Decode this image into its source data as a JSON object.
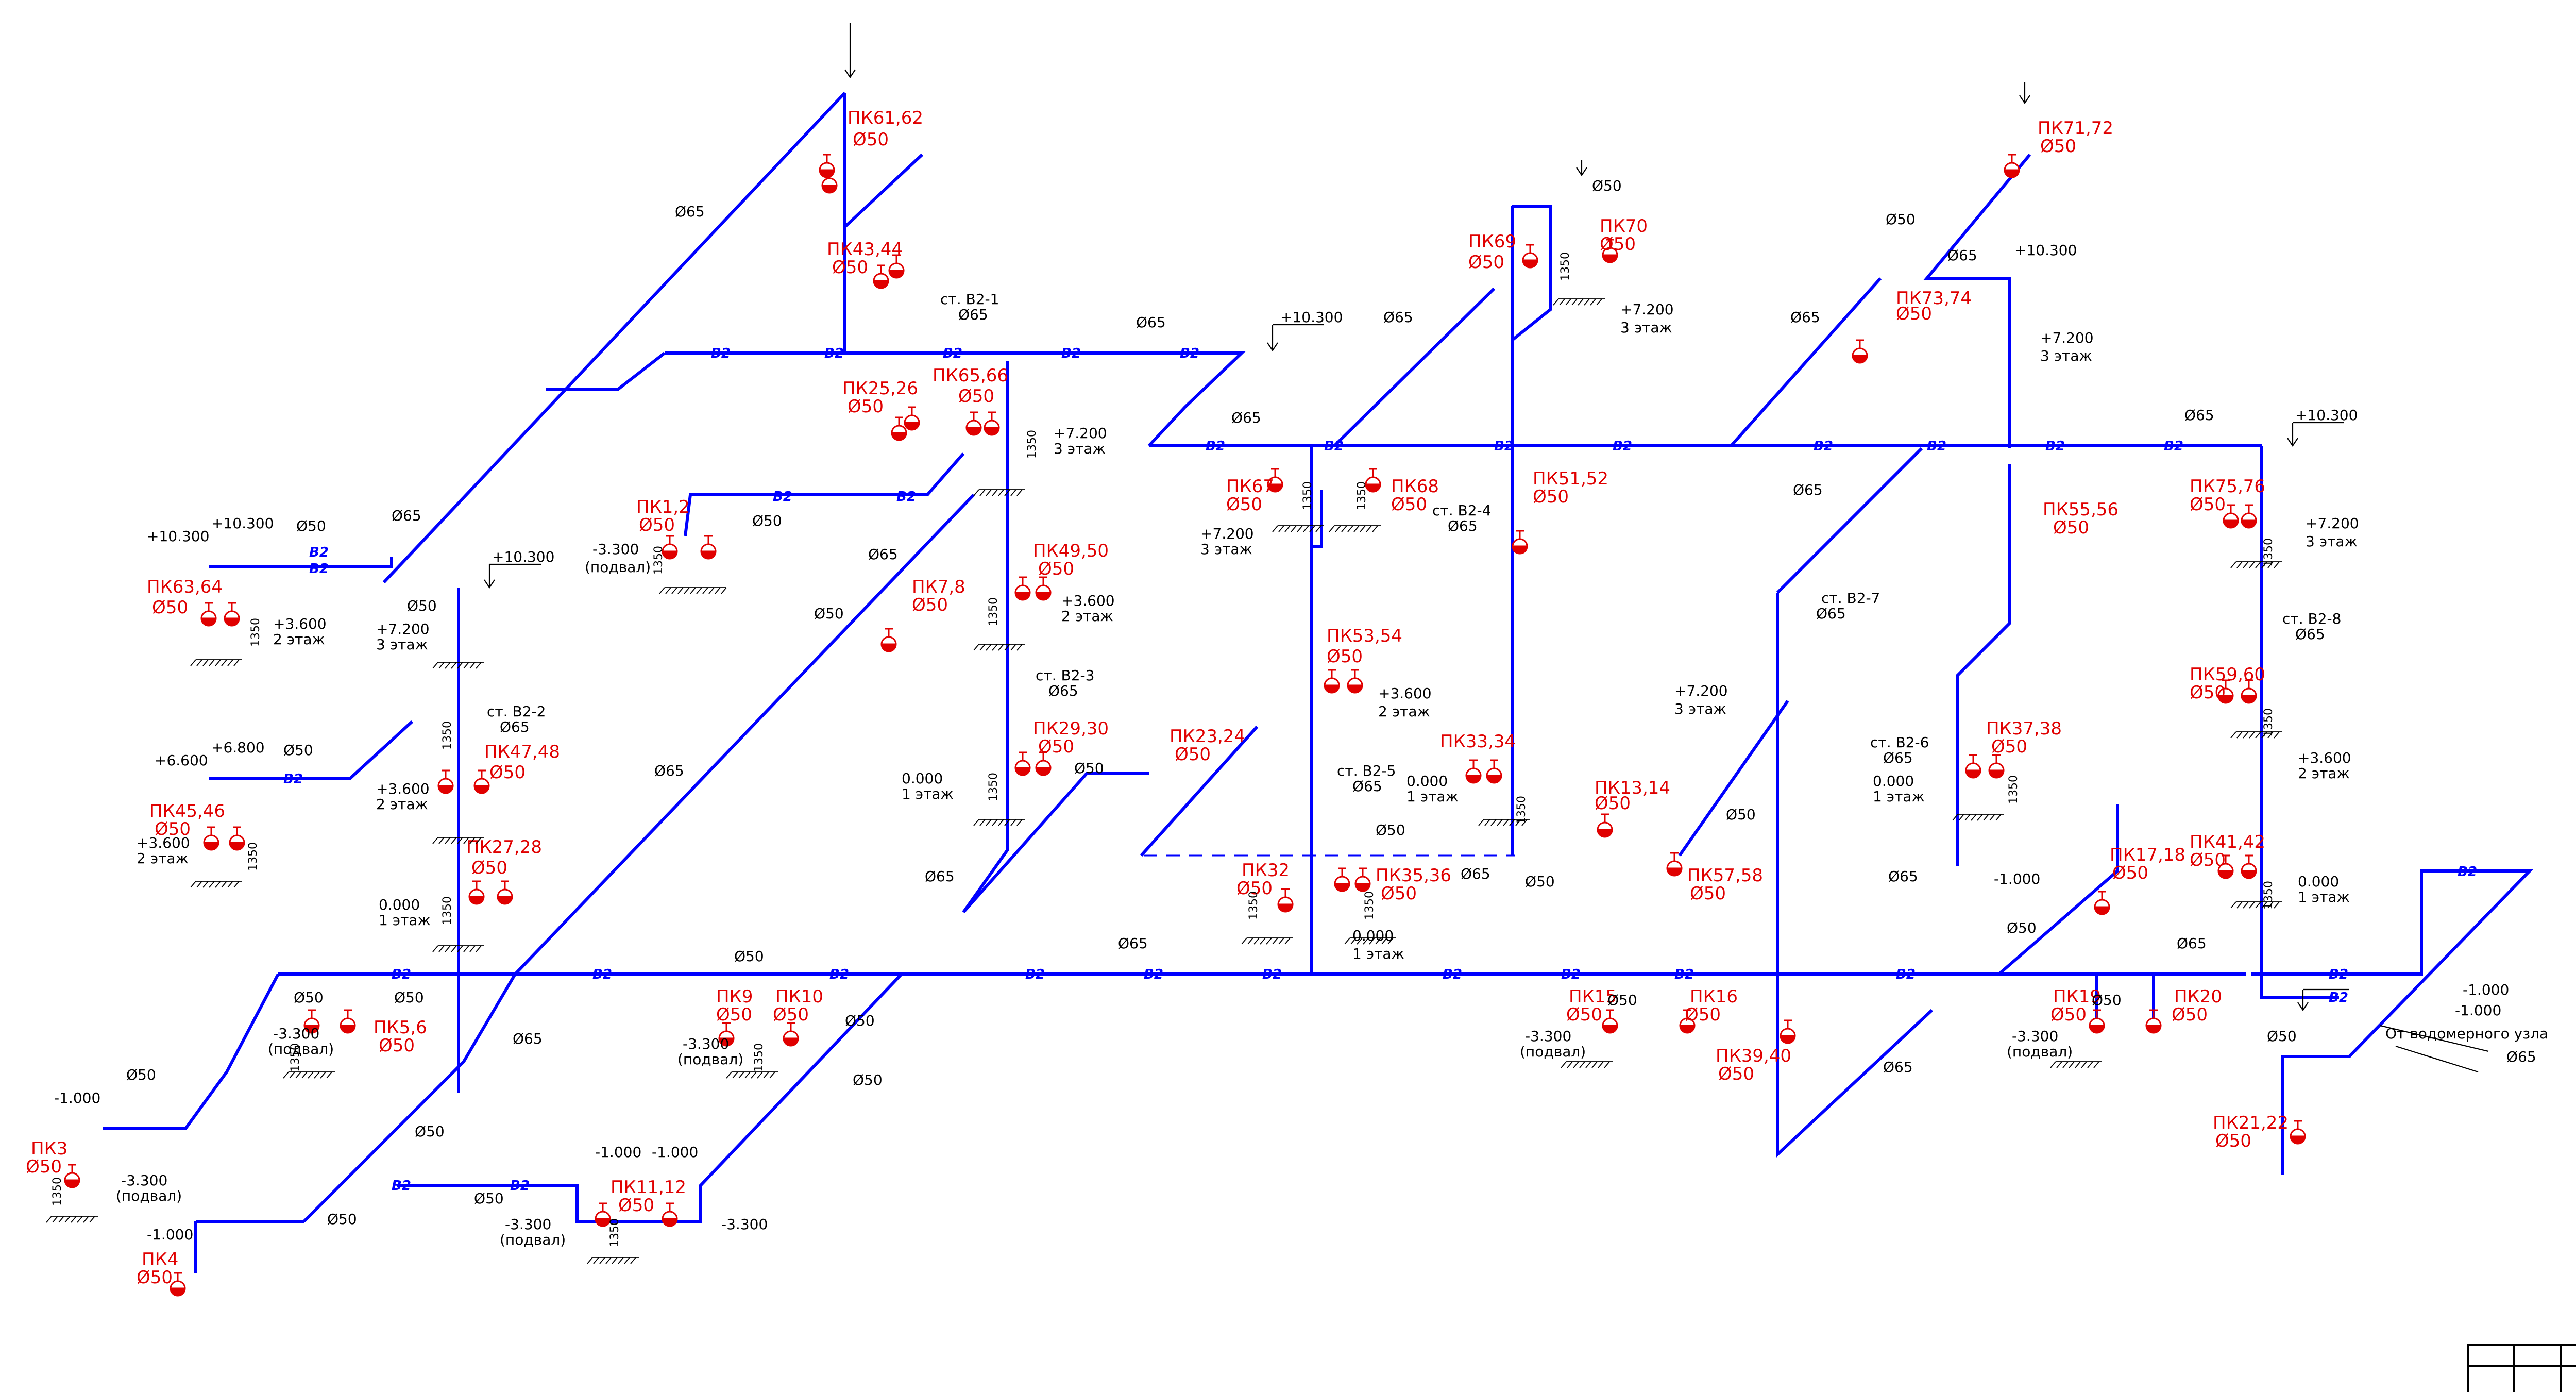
{
  "labels": {
    "pk61_62": "ПК61,62",
    "pk43_44": "ПК43,44",
    "pk65_66": "ПК65,66",
    "pk25_26": "ПК25,26",
    "pk1_2": "ПК1,2",
    "pk63_64": "ПК63,64",
    "pk7_8": "ПК7,8",
    "pk49_50": "ПК49,50",
    "pk29_30": "ПК29,30",
    "pk45_46": "ПК45,46",
    "pk47_48": "ПК47,48",
    "pk27_28": "ПК27,28",
    "pk5_6": "ПК5,6",
    "pk9": "ПК9",
    "pk10": "ПК10",
    "pk3": "ПК3",
    "pk4": "ПК4",
    "pk11_12": "ПК11,12",
    "pk69": "ПК69",
    "pk70": "ПК70",
    "pk67": "ПК67",
    "pk68": "ПК68",
    "pk51_52": "ПК51,52",
    "pk53_54": "ПК53,54",
    "pk23_24": "ПК23,24",
    "pk33_34": "ПК33,34",
    "pk13_14": "ПК13,14",
    "pk32": "ПК32",
    "pk35_36": "ПК35,36",
    "pk57_58": "ПК57,58",
    "pk15": "ПК15",
    "pk16": "ПК16",
    "pk39_40": "ПК39,40",
    "pk71_72": "ПК71,72",
    "pk73_74": "ПК73,74",
    "pk75_76": "ПК75,76",
    "pk55_56": "ПК55,56",
    "pk37_38": "ПК37,38",
    "pk59_60": "ПК59,60",
    "pk41_42": "ПК41,42",
    "pk17_18": "ПК17,18",
    "pk19": "ПК19",
    "pk20": "ПК20",
    "pk21_22": "ПК21,22"
  },
  "dia": {
    "d50": "Ø50",
    "d65": "Ø65"
  },
  "risers": {
    "st1": "ст. В2-1",
    "st2": "ст. В2-2",
    "st3": "ст. В2-3",
    "st4": "ст. В2-4",
    "st5": "ст. В2-5",
    "st6": "ст. В2-6",
    "st7": "ст. В2-7",
    "st8": "ст. В2-8"
  },
  "levels": {
    "p10300": "+10.300",
    "p7200": "+7.200",
    "p6800": "+6.800",
    "p6600": "+6.600",
    "p3600": "+3.600",
    "z0000": "0.000",
    "m1000": "-1.000",
    "m3300": "-3.300"
  },
  "floors": {
    "f1": "1 этаж",
    "f2": "2 этаж",
    "f3": "3 этаж",
    "basement": "(подвал)"
  },
  "misc": {
    "h1350": "1350",
    "b2": "В2",
    "from_meter": "От водомерного узла"
  }
}
